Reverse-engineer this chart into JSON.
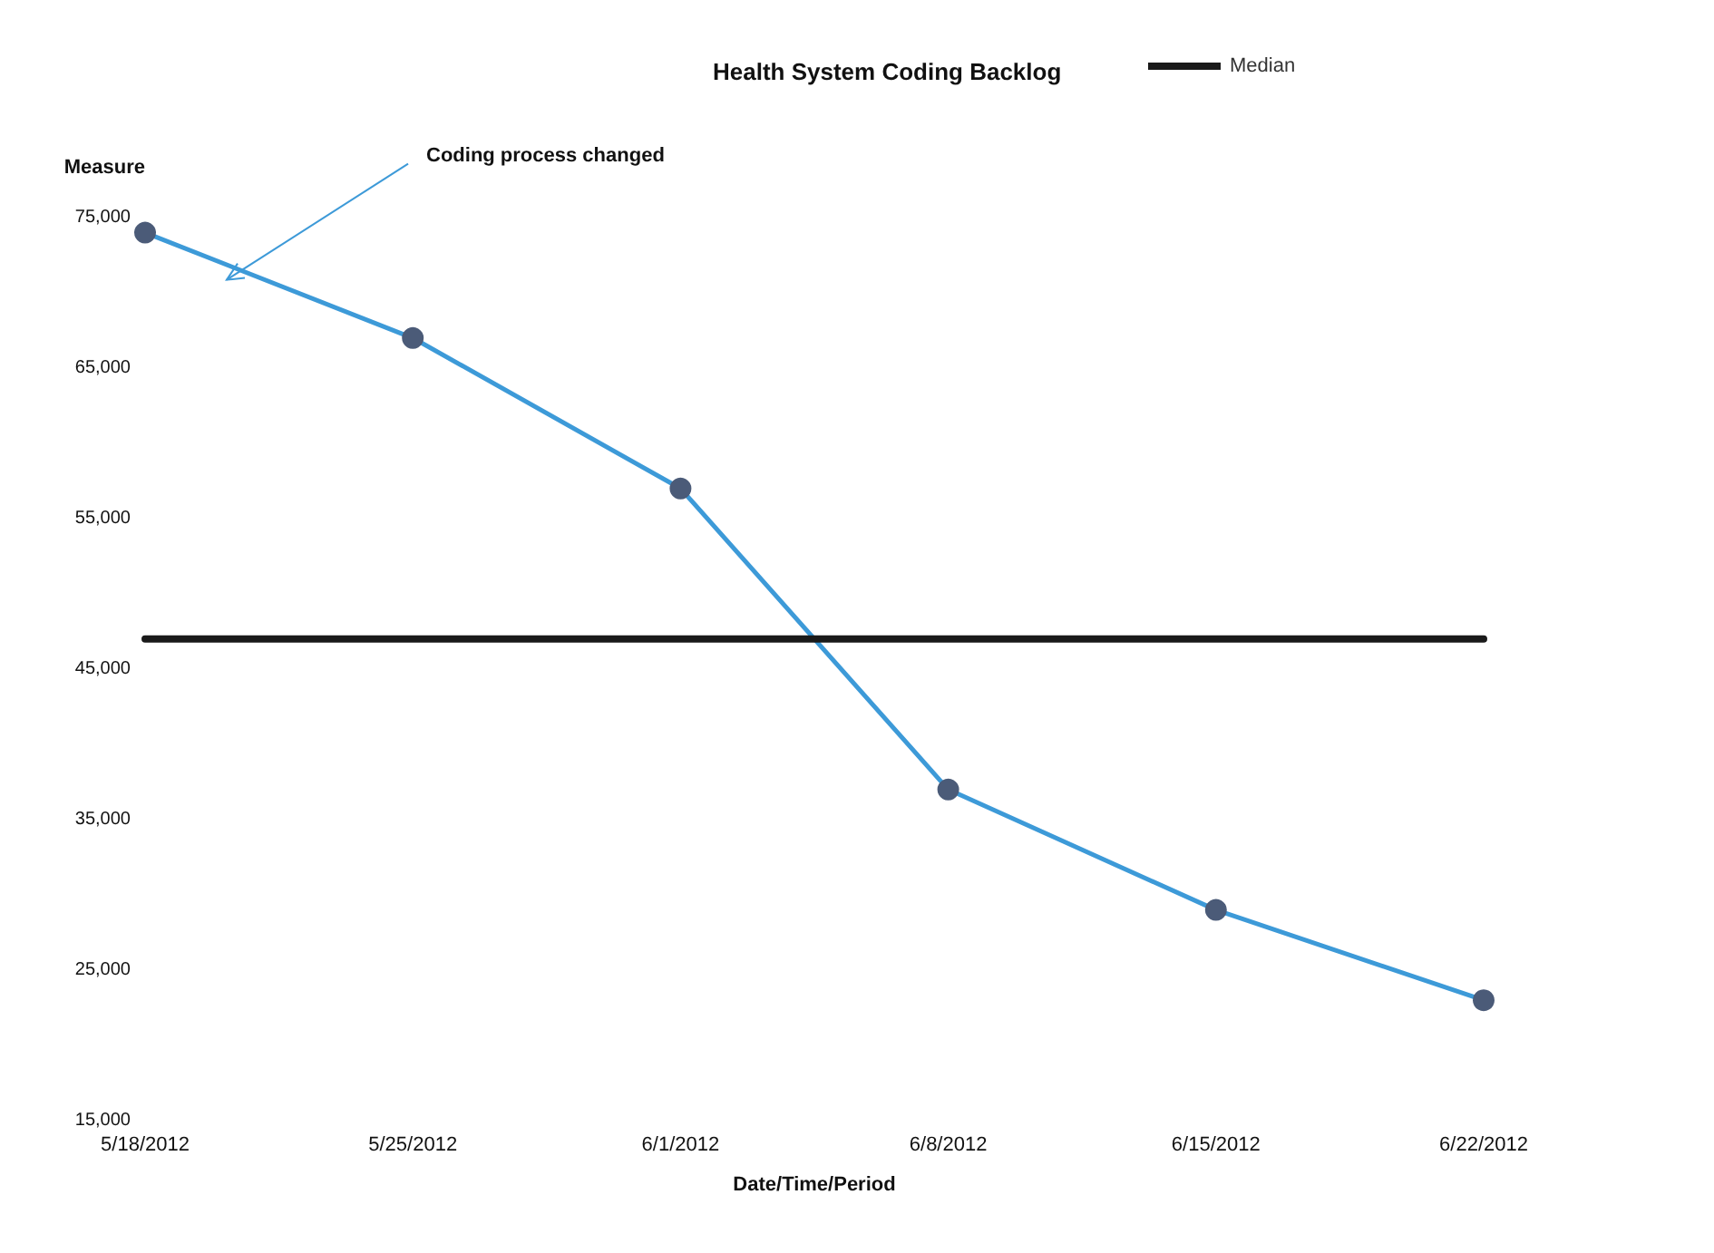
{
  "chart_data": {
    "type": "line",
    "title": "Health System Coding Backlog",
    "xlabel": "Date/Time/Period",
    "ylabel": "Measure",
    "categories": [
      "5/18/2012",
      "5/25/2012",
      "6/1/2012",
      "6/8/2012",
      "6/15/2012",
      "6/22/2012"
    ],
    "series": [
      {
        "color": "#3d9ad8",
        "marker": "circle",
        "values": [
          74000,
          67000,
          57000,
          37000,
          29000,
          23000
        ]
      },
      {
        "name": "Median",
        "color": "#1a1a1a",
        "marker": "none",
        "values": [
          47000,
          47000,
          47000,
          47000,
          47000,
          47000
        ]
      }
    ],
    "ylim": [
      15000,
      75000
    ],
    "yticks": [
      {
        "value": 15000,
        "label": "15,000"
      },
      {
        "value": 25000,
        "label": "25,000"
      },
      {
        "value": 35000,
        "label": "35,000"
      },
      {
        "value": 45000,
        "label": "45,000"
      },
      {
        "value": 55000,
        "label": "55,000"
      },
      {
        "value": 65000,
        "label": "65,000"
      },
      {
        "value": 75000,
        "label": "75,000"
      }
    ],
    "grid": false,
    "legend": "top right",
    "line_style": "solid",
    "annotations": [
      "Coding process changed"
    ]
  }
}
